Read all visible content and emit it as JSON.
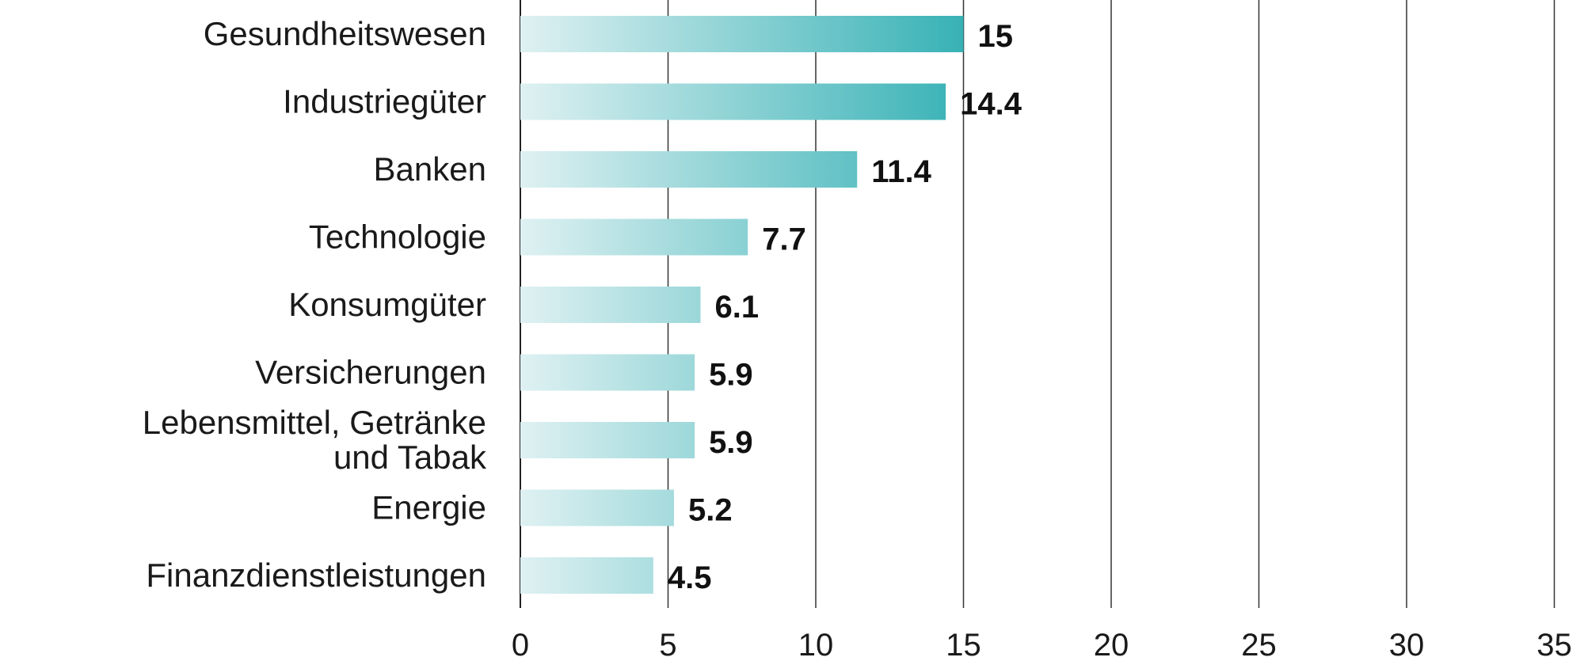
{
  "chart_data": {
    "type": "bar",
    "orientation": "horizontal",
    "categories": [
      "Gesundheitswesen",
      "Industriegüter",
      "Banken",
      "Technologie",
      "Konsumgüter",
      "Versicherungen",
      "Lebensmittel, Getränke und Tabak",
      "Energie",
      "Finanzdienstleistungen"
    ],
    "category_lines": [
      [
        "Gesundheitswesen"
      ],
      [
        "Industriegüter"
      ],
      [
        "Banken"
      ],
      [
        "Technologie"
      ],
      [
        "Konsumgüter"
      ],
      [
        "Versicherungen"
      ],
      [
        "Lebensmittel, Getränke",
        "und Tabak"
      ],
      [
        "Energie"
      ],
      [
        "Finanzdienstleistungen"
      ]
    ],
    "values": [
      15,
      14.4,
      11.4,
      7.7,
      6.1,
      5.9,
      5.9,
      5.2,
      4.5
    ],
    "value_labels": [
      "15",
      "14.4",
      "11.4",
      "7.7",
      "6.1",
      "5.9",
      "5.9",
      "5.2",
      "4.5"
    ],
    "xlim": [
      0,
      35
    ],
    "x_ticks": [
      0,
      5,
      10,
      15,
      20,
      25,
      30,
      35
    ],
    "x_tick_labels": [
      "0",
      "5",
      "10",
      "15",
      "20",
      "25",
      "30",
      "35"
    ],
    "grid": true,
    "legend": "none",
    "title": "",
    "xlabel": "",
    "ylabel": "",
    "colors": {
      "bar_gradient_start": "#dff1f2",
      "bar_gradient_end": "#38b2b6",
      "grid": "#333333",
      "text": "#1a1a1a"
    }
  }
}
